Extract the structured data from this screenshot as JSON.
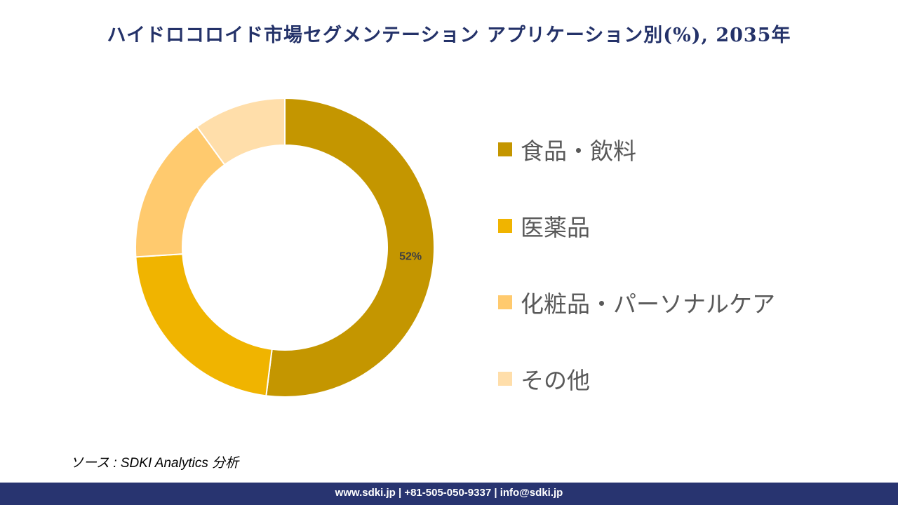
{
  "title": "ハイドロコロイド市場セグメンテーション アプリケーション別(%), 2035年",
  "chart_data": {
    "type": "pie",
    "variant": "donut",
    "title": "ハイドロコロイド市場セグメンテーション アプリケーション別(%), 2035年",
    "categories": [
      "食品・飲料",
      "医薬品",
      "化粧品・パーソナルケア",
      "その他"
    ],
    "values": [
      52,
      22,
      16,
      10
    ],
    "data_labels": [
      "52%",
      "",
      "",
      ""
    ],
    "colors": [
      "#C49600",
      "#F0B400",
      "#FFCA6E",
      "#FFDEAA"
    ],
    "legend_position": "right"
  },
  "source": "ソース : SDKI Analytics 分析",
  "footer": "www.sdki.jp | +81-505-050-9337 | info@sdki.jp"
}
